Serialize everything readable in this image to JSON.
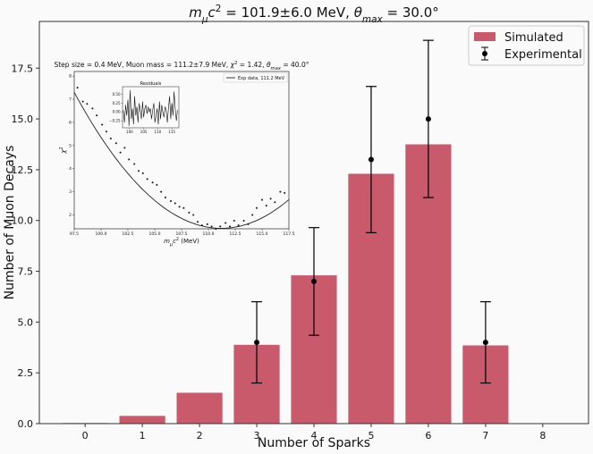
{
  "chart_data": [
    {
      "type": "bar",
      "title_parts": [
        "m",
        "μ",
        "c",
        "2",
        " = 101.9±6.0 MeV, ",
        "θ",
        "max",
        " = 30.0°"
      ],
      "xlabel": "Number of Sparks",
      "ylabel": "Number of Muon Decays",
      "categories": [
        0,
        1,
        2,
        3,
        4,
        5,
        6,
        7,
        8
      ],
      "xlim": [
        -0.8,
        8.8
      ],
      "ylim": [
        0,
        19.8
      ],
      "yticks": [
        0.0,
        2.5,
        5.0,
        7.5,
        10.0,
        12.5,
        15.0,
        17.5
      ],
      "ytick_labels": [
        "0.0",
        "2.5",
        "5.0",
        "7.5",
        "10.0",
        "12.5",
        "15.0",
        "17.5"
      ],
      "series": [
        {
          "name": "Simulated",
          "kind": "bar",
          "color": "#c85a6b",
          "values": [
            0.03,
            0.38,
            1.52,
            3.88,
            7.3,
            12.3,
            13.75,
            3.85,
            0.0
          ]
        },
        {
          "name": "Experimental",
          "kind": "errorbar",
          "color": "#000000",
          "x": [
            3,
            4,
            5,
            6,
            7
          ],
          "values": [
            4.0,
            7.0,
            13.0,
            15.0,
            4.0
          ],
          "err": [
            2.0,
            2.65,
            3.6,
            3.87,
            2.0
          ]
        }
      ],
      "legend_position": "top-right"
    },
    {
      "type": "scatter",
      "title_parts": [
        "Step size = 0.4 MeV, Muon mass = 111.2±7.9 MeV, ",
        "χ",
        "2",
        " = 1.42, ",
        "θ",
        "max",
        " = 40.0°"
      ],
      "xlabel_parts": [
        "m",
        "μ",
        "c",
        "2",
        " (MeV)"
      ],
      "ylabel_parts": [
        "χ",
        "2"
      ],
      "xlim": [
        97.5,
        117.5
      ],
      "ylim": [
        1.4,
        8.2
      ],
      "xticks": [
        97.5,
        100.0,
        102.5,
        105.0,
        107.5,
        110.0,
        112.5,
        115.0,
        117.5
      ],
      "xtick_labels": [
        "97.5",
        "100.0",
        "102.5",
        "105.0",
        "107.5",
        "110.0",
        "112.5",
        "115.0",
        "117.5"
      ],
      "yticks": [
        2,
        3,
        4,
        5,
        6,
        7,
        8
      ],
      "ytick_labels": [
        "2",
        "3",
        "4",
        "5",
        "6",
        "7",
        "8"
      ],
      "fit_line": {
        "name": "Exp data, 111.2 MeV",
        "vertex_x": 111.2,
        "vertex_y": 1.42,
        "x_start": 97.5,
        "y_start": 7.3
      },
      "points_x": [
        97.8,
        98.3,
        98.7,
        99.2,
        99.6,
        100.1,
        100.5,
        100.9,
        101.4,
        101.8,
        102.2,
        102.6,
        103.1,
        103.5,
        103.9,
        104.3,
        104.8,
        105.2,
        105.6,
        106.0,
        106.5,
        106.9,
        107.3,
        107.7,
        108.2,
        108.6,
        109.0,
        109.4,
        109.9,
        110.3,
        110.7,
        111.1,
        111.6,
        112.0,
        112.4,
        112.8,
        113.3,
        113.7,
        114.1,
        114.5,
        115.0,
        115.4,
        115.8,
        116.2,
        116.7,
        117.1
      ],
      "points_y": [
        7.5,
        6.9,
        6.8,
        6.6,
        6.3,
        5.9,
        5.6,
        5.3,
        5.1,
        4.7,
        4.9,
        4.4,
        4.2,
        3.9,
        3.8,
        3.55,
        3.4,
        3.3,
        3.0,
        2.75,
        2.6,
        2.5,
        2.35,
        2.3,
        2.1,
        2.0,
        1.7,
        1.55,
        1.6,
        1.5,
        1.4,
        1.5,
        1.65,
        1.5,
        1.75,
        1.55,
        1.75,
        1.6,
        2.0,
        2.3,
        2.65,
        2.4,
        2.7,
        2.55,
        3.0,
        2.95
      ]
    },
    {
      "type": "line",
      "title": "Residuals",
      "xlim": [
        97.5,
        117.5
      ],
      "ylim": [
        -0.45,
        0.72
      ],
      "xticks": [
        100,
        105,
        110,
        115
      ],
      "xtick_labels": [
        "100",
        "105",
        "110",
        "115"
      ],
      "yticks": [
        -0.25,
        0.0,
        0.25,
        0.5
      ],
      "ytick_labels": [
        "−0.25",
        "0.00",
        "0.25",
        "0.50"
      ],
      "x": [
        97.8,
        98.2,
        98.6,
        99.0,
        99.4,
        99.8,
        100.2,
        100.6,
        101.0,
        101.4,
        101.8,
        102.2,
        102.6,
        103.0,
        103.4,
        103.8,
        104.2,
        104.6,
        105.0,
        105.4,
        105.8,
        106.2,
        106.6,
        107.0,
        107.4,
        107.8,
        108.2,
        108.6,
        109.0,
        109.4,
        109.8,
        110.2,
        110.6,
        111.0,
        111.4,
        111.8,
        112.2,
        112.6,
        113.0,
        113.4,
        113.8,
        114.2,
        114.6,
        115.0,
        115.4,
        115.8,
        116.2,
        116.6,
        117.0
      ],
      "values": [
        0.05,
        -0.3,
        0.2,
        -0.1,
        0.35,
        -0.4,
        0.62,
        -0.2,
        0.1,
        -0.35,
        0.45,
        -0.1,
        0.15,
        -0.3,
        0.25,
        0.05,
        -0.2,
        0.3,
        -0.15,
        0.1,
        0.2,
        -0.05,
        0.15,
        0.0,
        0.1,
        -0.2,
        0.05,
        0.25,
        -0.3,
        -0.1,
        0.1,
        -0.35,
        0.3,
        -0.2,
        0.2,
        0.0,
        -0.15,
        0.15,
        0.05,
        -0.3,
        0.1,
        0.45,
        -0.2,
        0.25,
        -0.1,
        0.58,
        0.1,
        -0.25,
        0.05
      ]
    }
  ]
}
